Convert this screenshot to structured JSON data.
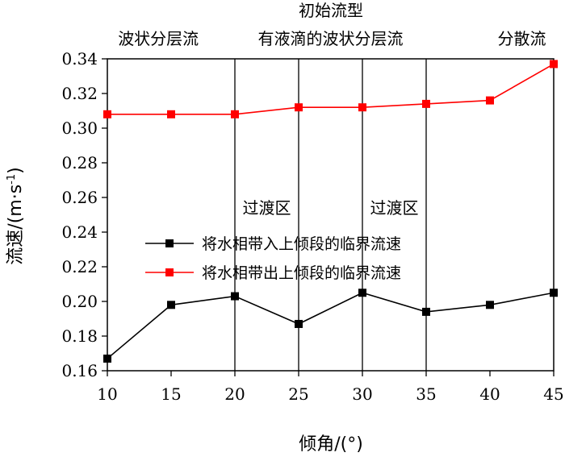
{
  "chart_data": {
    "type": "line",
    "title": "初始流型",
    "xlabel": "倾角/(°)",
    "ylabel": "流速/(m·s",
    "ylabel_sup": "-1",
    "ylabel_close": ")",
    "xlim": [
      10,
      45
    ],
    "ylim": [
      0.16,
      0.34
    ],
    "x_ticks": [
      10,
      15,
      20,
      25,
      30,
      35,
      40,
      45
    ],
    "x_tick_labels": [
      "10",
      "15",
      "20",
      "25",
      "30",
      "35",
      "40",
      "45"
    ],
    "y_ticks": [
      0.16,
      0.18,
      0.2,
      0.22,
      0.24,
      0.26,
      0.28,
      0.3,
      0.32,
      0.34
    ],
    "y_tick_labels": [
      "0.16",
      "0.18",
      "0.20",
      "0.22",
      "0.24",
      "0.26",
      "0.28",
      "0.30",
      "0.32",
      "0.34"
    ],
    "x": [
      10,
      15,
      20,
      25,
      30,
      35,
      40,
      45
    ],
    "series": [
      {
        "name": "将水相带入上倾段的临界流速",
        "color": "#000000",
        "marker": "square",
        "values": [
          0.167,
          0.198,
          0.203,
          0.187,
          0.205,
          0.194,
          0.198,
          0.205
        ]
      },
      {
        "name": "将水相带出上倾段的临界流速",
        "color": "#ff0000",
        "marker": "square",
        "values": [
          0.308,
          0.308,
          0.308,
          0.312,
          0.312,
          0.314,
          0.316,
          0.337
        ]
      }
    ],
    "vlines": [
      20,
      25,
      30,
      35
    ],
    "flow_regimes": [
      {
        "label": "波状分层流",
        "x": 14
      },
      {
        "label": "有液滴的波状分层流",
        "x": 27.5
      },
      {
        "label": "分散流",
        "x": 42.5
      }
    ],
    "transitions": [
      {
        "label": "过渡区",
        "x": 22.5,
        "y": 0.254
      },
      {
        "label": "过渡区",
        "x": 32.5,
        "y": 0.254
      }
    ],
    "legend_position": "center-left",
    "grid": false
  }
}
